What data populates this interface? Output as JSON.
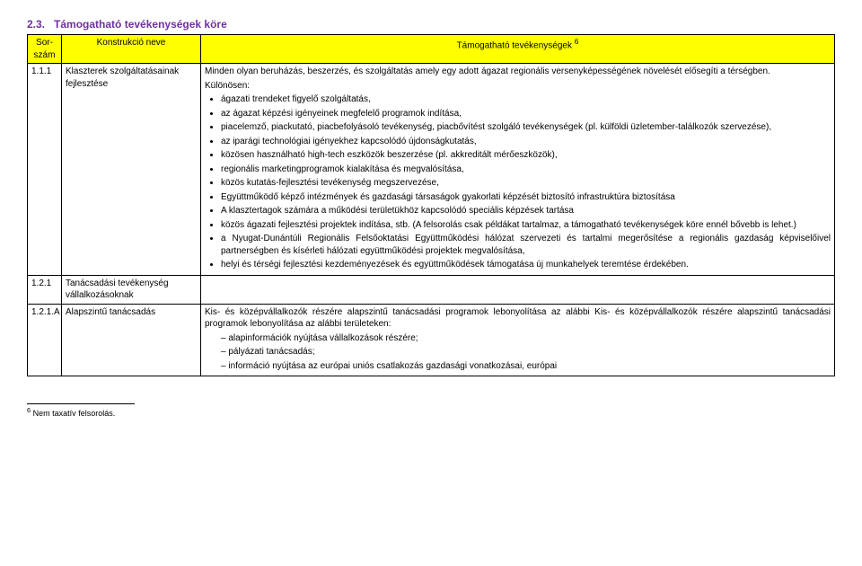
{
  "section": {
    "number": "2.3.",
    "title": "Támogatható tevékenységek köre"
  },
  "headers": {
    "col1": "Sor-szám",
    "col2": "Konstrukció neve",
    "col3": "Támogatható tevékenységek",
    "sup": "6"
  },
  "row1": {
    "num": "1.1.1",
    "name": "Klaszterek szolgáltatásainak fejlesztése",
    "intro": "Minden olyan beruházás, beszerzés, és szolgáltatás amely egy adott ágazat regionális versenyképességének növelését elősegíti a térségben.",
    "kulon": "Különösen:",
    "b1": "ágazati trendeket figyelő szolgáltatás,",
    "b2": "az ágazat képzési igényeinek megfelelő programok indítása,",
    "b3": "piacelemző, piackutató, piacbefolyásoló tevékenység, piacbővítést szolgáló tevékenységek (pl. külföldi üzletember-találkozók szervezése),",
    "b4": "az iparági technológiai igényekhez kapcsolódó újdonságkutatás,",
    "b5": "közösen használható high-tech eszközök beszerzése (pl. akkreditált mérőeszközök),",
    "b6": "regionális marketingprogramok kialakítása és megvalósítása,",
    "b7": "közös kutatás-fejlesztési tevékenység megszervezése,",
    "b8": "Együttműködő képző intézmények és gazdasági társaságok gyakorlati képzését biztosító infrastruktúra biztosítása",
    "b9": "A klasztertagok számára a működési területükhöz kapcsolódó speciális képzések tartása",
    "b10": "közös ágazati fejlesztési projektek indítása, stb. (A felsorolás csak példákat tartalmaz, a támogatható tevékenységek köre ennél bővebb is lehet.)",
    "b11": "a Nyugat-Dunántúli Regionális Felsőoktatási Együttműködési hálózat szervezeti és tartalmi megerősítése a regionális gazdaság képviselőivel partnerségben és kísérleti hálózati együttműködési projektek megvalósítása,",
    "b12": "helyi és térségi fejlesztési kezdeményezések és együttműködések támogatása új munkahelyek teremtése érdekében."
  },
  "row2": {
    "num": "1.2.1",
    "name": "Tanácsadási tevékenység vállalkozásoknak"
  },
  "row3": {
    "num": "1.2.1.A",
    "name": "Alapszintű tanácsadás",
    "intro": "Kis- és középvállalkozók részére alapszintű tanácsadási programok lebonyolítása az alábbi Kis- és középvállalkozók részére alapszintű tanácsadási programok lebonyolítása az alábbi területeken:",
    "d1": "alapinformációk nyújtása vállalkozások részére;",
    "d2": "pályázati tanácsadás;",
    "d3": "információ nyújtása az európai uniós csatlakozás gazdasági vonatkozásai, európai"
  },
  "footnote": {
    "mark": "6",
    "text": " Nem taxatív felsorolás."
  }
}
